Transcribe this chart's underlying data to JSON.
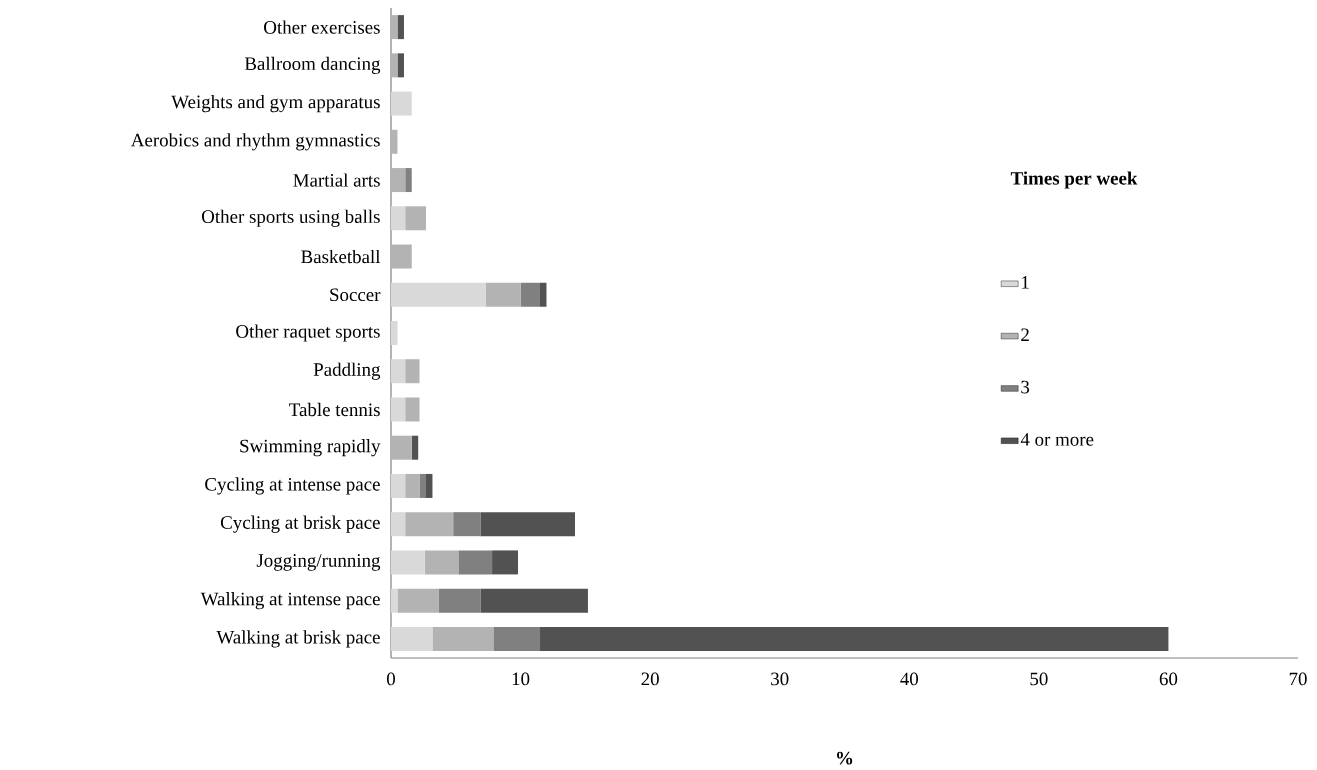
{
  "chart_data": {
    "type": "bar",
    "orientation": "horizontal",
    "stacked": true,
    "xlabel": "%",
    "legend_title": "Times per week",
    "legend": "right",
    "categories": [
      "Other exercises",
      "Ballroom dancing",
      "Weights and gym apparatus",
      "Aerobics and rhythm gymnastics",
      "Martial arts",
      "Other sports using balls",
      "Basketball",
      "Soccer",
      "Other raquet sports",
      "Paddling",
      "Table tennis",
      "Swimming rapidly",
      "Cycling at intense pace",
      "Cycling at brisk pace",
      "Jogging/running",
      "Walking at intense pace",
      "Walking at brisk pace"
    ],
    "series": [
      {
        "name": "1",
        "color": "#d9d9d9",
        "values": [
          0,
          0,
          1.6,
          0,
          0,
          1.1,
          0,
          7.3,
          0.5,
          1.1,
          1.1,
          0,
          1.1,
          1.1,
          2.6,
          0.5,
          3.2
        ]
      },
      {
        "name": "2",
        "color": "#b3b3b3",
        "values": [
          0.5,
          0.5,
          0,
          0.5,
          1.1,
          1.6,
          1.6,
          2.7,
          0,
          1.1,
          1.1,
          1.6,
          1.1,
          3.7,
          2.6,
          3.2,
          4.7
        ]
      },
      {
        "name": "3",
        "color": "#808080",
        "values": [
          0,
          0,
          0,
          0,
          0.5,
          0,
          0,
          1.5,
          0,
          0,
          0,
          0,
          0.5,
          2.1,
          2.6,
          3.2,
          3.6
        ]
      },
      {
        "name": "4 or more",
        "color": "#525252",
        "values": [
          0.5,
          0.5,
          0,
          0,
          0,
          0,
          0,
          0.5,
          0,
          0,
          0,
          0.5,
          0.5,
          7.3,
          2.0,
          8.3,
          48.5
        ]
      }
    ],
    "xlim": [
      0,
      70
    ],
    "xticks": [
      0,
      10,
      20,
      30,
      40,
      50,
      60,
      70
    ],
    "grid": false
  }
}
